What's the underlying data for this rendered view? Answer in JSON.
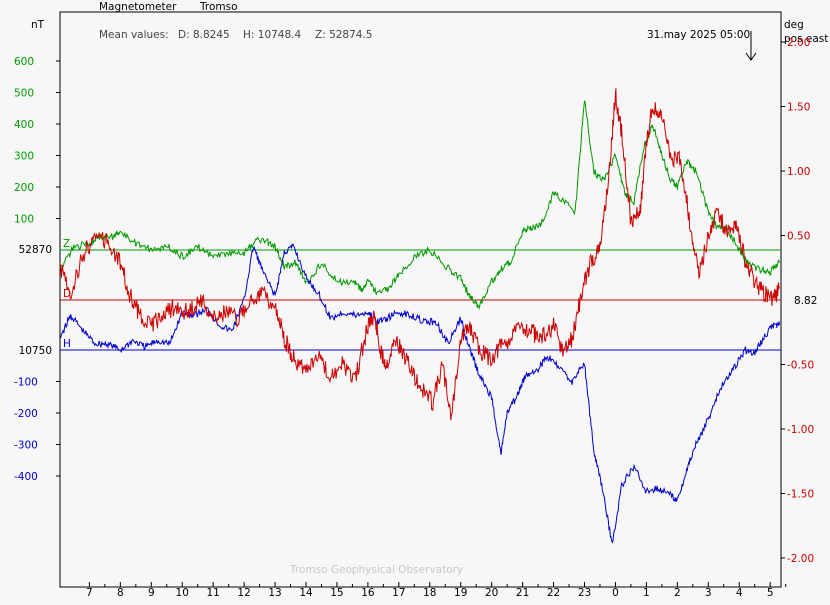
{
  "header": {
    "title": "Magnetometer",
    "station": "Tromso",
    "mean_label": "Mean values:",
    "mean_d": "D: 8.8245",
    "mean_h": "H: 10748.4",
    "mean_z": "Z: 52874.5",
    "timestamp": "31.may 2025 05:00",
    "left_unit": "nT",
    "right_unit_1": "deg",
    "right_unit_2": "pos east",
    "footer": "Tromso Geophysical Observatory"
  },
  "colors": {
    "green": "#009900",
    "blue": "#0000cc",
    "red": "#cc0000",
    "frame": "#000000",
    "footer": "#c8c8c8"
  },
  "chart_data": {
    "type": "line",
    "x_unit": "hour of day",
    "x_range_hours": [
      6.05,
      29.35
    ],
    "x_ticks": [
      "7",
      "8",
      "9",
      "10",
      "11",
      "12",
      "13",
      "14",
      "15",
      "16",
      "17",
      "18",
      "19",
      "20",
      "21",
      "22",
      "23",
      "0",
      "1",
      "2",
      "3",
      "4",
      "5"
    ],
    "left_axis": {
      "unit": "nT",
      "green_ticks": [
        "600",
        "500",
        "400",
        "300",
        "200",
        "100"
      ],
      "green_tick_values": [
        600,
        500,
        400,
        300,
        200,
        100
      ],
      "blue_ticks": [
        "-100",
        "-200",
        "-300",
        "-400"
      ],
      "blue_tick_values": [
        -100,
        -200,
        -300,
        -400
      ],
      "z_baseline_label": "52870",
      "h_baseline_label": "10750",
      "range_nt": [
        -700,
        900
      ]
    },
    "right_axis": {
      "unit": "deg pos east",
      "ticks": [
        "2.00",
        "1.50",
        "1.00",
        "0.50",
        "-0.50",
        "-1.00",
        "-1.50",
        "-2.00"
      ],
      "tick_values": [
        2.0,
        1.5,
        1.0,
        0.5,
        -0.5,
        -1.0,
        -1.5,
        -2.0
      ],
      "d_baseline_label": "8.82",
      "range_deg": [
        -2.1,
        2.1
      ]
    },
    "series": [
      {
        "name": "Z",
        "color": "#009900",
        "axis": "left",
        "baseline_nt": 52870,
        "x": [
          6.05,
          6.5,
          7,
          7.3,
          7.7,
          8,
          8.5,
          9,
          9.5,
          10,
          10.5,
          11,
          11.5,
          12,
          12.4,
          12.7,
          13,
          13.3,
          13.7,
          14,
          14.5,
          15,
          15.5,
          15.8,
          16,
          16.3,
          16.7,
          17,
          17.5,
          18,
          18.5,
          19,
          19.3,
          19.6,
          20,
          20.3,
          20.6,
          21,
          21.3,
          21.6,
          22,
          22.3,
          22.7,
          23,
          23.3,
          23.6,
          24,
          24.3,
          24.6,
          24.9,
          25.2,
          25.5,
          25.8,
          26,
          26.3,
          26.6,
          27,
          27.3,
          27.6,
          28,
          28.3,
          28.6,
          29,
          29.3
        ],
        "values": [
          -60,
          10,
          20,
          40,
          40,
          60,
          20,
          0,
          10,
          -20,
          10,
          -20,
          -10,
          -10,
          30,
          30,
          10,
          -50,
          -40,
          -110,
          -40,
          -100,
          -100,
          -130,
          -100,
          -140,
          -120,
          -80,
          -20,
          0,
          -50,
          -90,
          -150,
          -180,
          -100,
          -60,
          -40,
          60,
          70,
          80,
          180,
          160,
          120,
          480,
          250,
          220,
          300,
          180,
          150,
          320,
          400,
          300,
          220,
          200,
          280,
          250,
          120,
          70,
          70,
          0,
          -40,
          -60,
          -70,
          -40
        ]
      },
      {
        "name": "H",
        "color": "#0000cc",
        "axis": "left",
        "baseline_nt": 10750,
        "x": [
          6.05,
          6.4,
          6.8,
          7.2,
          7.6,
          8,
          8.4,
          8.8,
          9.2,
          9.6,
          10,
          10.4,
          10.8,
          11.2,
          11.6,
          12,
          12.3,
          12.6,
          13,
          13.3,
          13.6,
          14,
          14.4,
          14.8,
          15.2,
          15.6,
          16,
          16.3,
          16.6,
          17,
          17.4,
          17.8,
          18.2,
          18.6,
          19,
          19.3,
          19.6,
          20,
          20.3,
          20.5,
          20.8,
          21.1,
          21.5,
          21.8,
          22.2,
          22.6,
          23,
          23.3,
          23.6,
          23.9,
          24.2,
          24.6,
          25,
          25.4,
          25.8,
          26,
          26.3,
          26.6,
          27,
          27.4,
          27.8,
          28.2,
          28.5,
          28.8,
          29.1,
          29.3
        ],
        "values": [
          40,
          110,
          60,
          20,
          20,
          0,
          30,
          10,
          30,
          20,
          120,
          110,
          130,
          80,
          60,
          160,
          330,
          250,
          170,
          310,
          330,
          230,
          180,
          100,
          120,
          110,
          120,
          90,
          100,
          120,
          110,
          90,
          90,
          20,
          100,
          0,
          -80,
          -150,
          -330,
          -200,
          -150,
          -80,
          -60,
          -20,
          -60,
          -100,
          -40,
          -320,
          -450,
          -620,
          -430,
          -370,
          -450,
          -440,
          -460,
          -480,
          -380,
          -300,
          -220,
          -120,
          -60,
          0,
          -10,
          40,
          80,
          80
        ]
      },
      {
        "name": "D",
        "color": "#cc0000",
        "axis": "right",
        "baseline_deg": 8.82,
        "x": [
          6.05,
          6.4,
          6.8,
          7.2,
          7.6,
          8,
          8.3,
          8.6,
          9,
          9.4,
          9.8,
          10.2,
          10.6,
          11,
          11.4,
          11.8,
          12.2,
          12.6,
          13,
          13.3,
          13.6,
          14,
          14.4,
          14.8,
          15.2,
          15.6,
          16,
          16.2,
          16.4,
          16.6,
          16.9,
          17.2,
          17.5,
          17.8,
          18.1,
          18.4,
          18.7,
          19,
          19.3,
          19.6,
          20,
          20.3,
          20.6,
          21,
          21.3,
          21.6,
          22,
          22.3,
          22.6,
          22.9,
          23.2,
          23.5,
          23.8,
          24,
          24.2,
          24.5,
          24.8,
          25,
          25.2,
          25.5,
          25.8,
          26.1,
          26.4,
          26.7,
          27,
          27.3,
          27.6,
          27.9,
          28.2,
          28.5,
          28.8,
          29.1,
          29.3
        ],
        "values": [
          0.25,
          0.05,
          0.35,
          0.5,
          0.45,
          0.3,
          0.05,
          -0.1,
          -0.2,
          -0.1,
          -0.05,
          -0.1,
          0,
          -0.15,
          -0.1,
          -0.15,
          0,
          0.05,
          -0.05,
          -0.3,
          -0.45,
          -0.55,
          -0.4,
          -0.6,
          -0.5,
          -0.6,
          -0.2,
          -0.1,
          -0.4,
          -0.5,
          -0.3,
          -0.45,
          -0.6,
          -0.7,
          -0.8,
          -0.5,
          -0.9,
          -0.3,
          -0.2,
          -0.4,
          -0.45,
          -0.35,
          -0.3,
          -0.2,
          -0.25,
          -0.3,
          -0.2,
          -0.4,
          -0.3,
          0.05,
          0.3,
          0.4,
          1.0,
          1.6,
          1.3,
          0.6,
          0.7,
          1.2,
          1.5,
          1.4,
          1.1,
          1.1,
          0.6,
          0.2,
          0.5,
          0.7,
          0.5,
          0.6,
          0.3,
          0.15,
          0.05,
          0,
          0.1
        ]
      }
    ],
    "baseline_labels": [
      "Z",
      "D",
      "H"
    ]
  }
}
